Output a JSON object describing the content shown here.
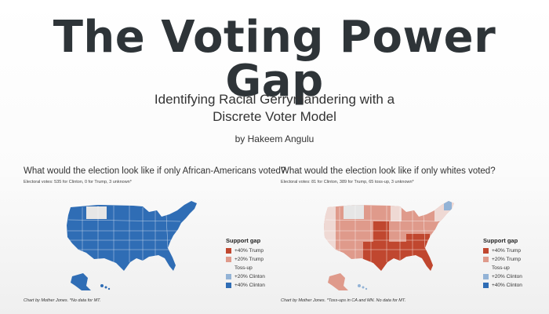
{
  "slide": {
    "title": "The Voting Power Gap",
    "subtitle_line1": "Identifying Racial Gerrymandering with a",
    "subtitle_line2": "Discrete Voter Model",
    "byline": "by Hakeem Angulu"
  },
  "colors": {
    "strong_trump": "#c0472f",
    "lean_trump": "#df9a8b",
    "tossup": "#efd9d4",
    "lean_clinton": "#93b3d6",
    "strong_clinton": "#2f6db5",
    "no_data": "#e6e6e6"
  },
  "legend": {
    "title": "Support gap",
    "items": [
      {
        "label": "+40% Trump",
        "color": "#c0472f"
      },
      {
        "label": "+20% Trump",
        "color": "#df9a8b"
      },
      {
        "label": "Toss-up",
        "color": ""
      },
      {
        "label": "+20% Clinton",
        "color": "#93b3d6"
      },
      {
        "label": "+40% Clinton",
        "color": "#2f6db5"
      }
    ]
  },
  "maps": [
    {
      "question": "What would the election look like if only African-Americans voted?",
      "electoral": "Electoral votes: 535 for Clinton, 0 for Trump, 3 unknown*",
      "credit": "Chart by Mother Jones. *No data for MT."
    },
    {
      "question": "What would the election look like if only whites voted?",
      "electoral": "Electoral votes: 81 for Clinton, 389 for Trump, 65 toss-up, 3 unknown*",
      "credit": "Chart by Mother Jones. *Toss-ups in CA and MN. No data for MT."
    }
  ]
}
